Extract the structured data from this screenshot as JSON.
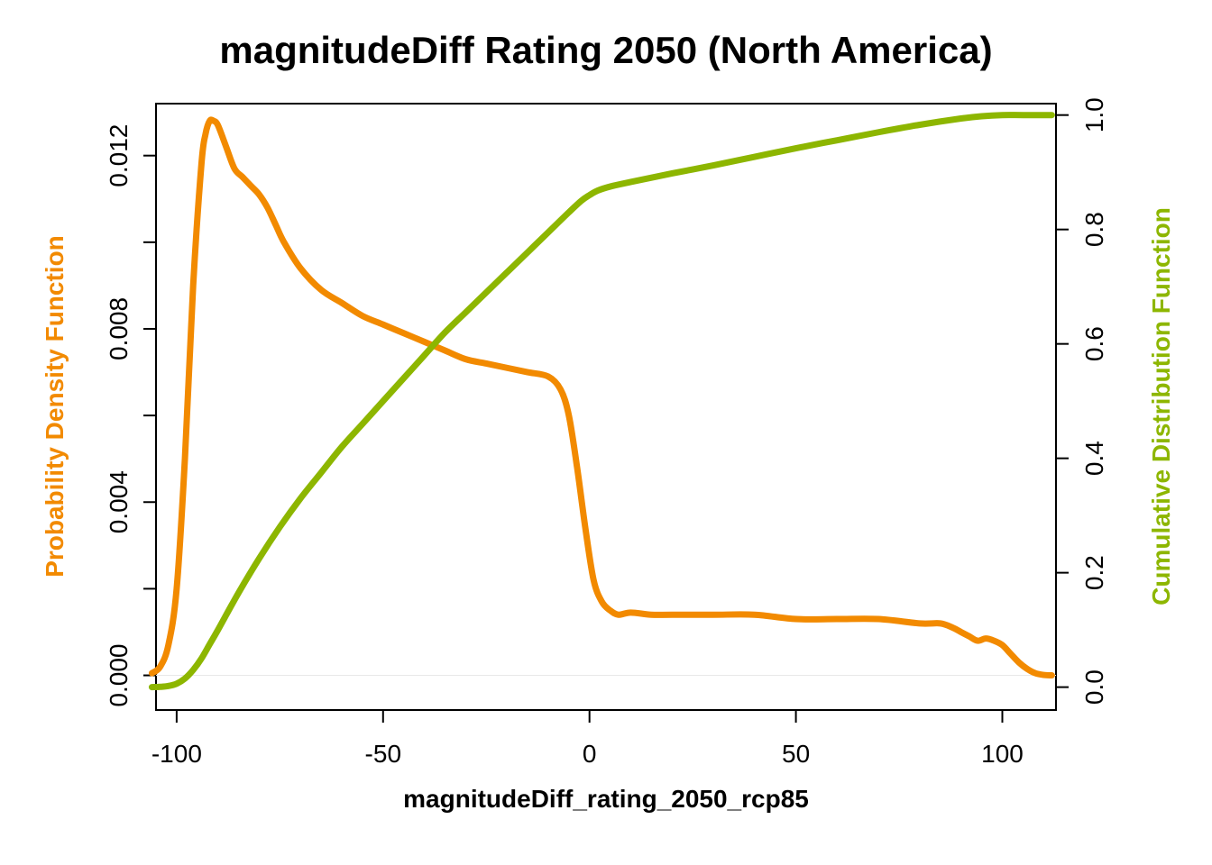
{
  "chart_data": {
    "type": "line",
    "title": "magnitudeDiff Rating 2050 (North America)",
    "xlabel": "magnitudeDiff_rating_2050_rcp85",
    "ylabel_left": "Probability Density Function",
    "ylabel_right": "Cumulative Distribution Function",
    "xlim": [
      -105,
      113
    ],
    "ylim_left": [
      -0.0008,
      0.0132
    ],
    "ylim_right": [
      -0.04,
      1.02
    ],
    "x_ticks": [
      -100,
      -50,
      0,
      50,
      100
    ],
    "x_tick_labels": [
      "-100",
      "-50",
      "0",
      "50",
      "100"
    ],
    "y_left_ticks": [
      0.0,
      0.002,
      0.004,
      0.006,
      0.008,
      0.01,
      0.012
    ],
    "y_left_tick_labels": [
      "0.000",
      "",
      "0.004",
      "",
      "0.008",
      "",
      "0.012"
    ],
    "y_right_ticks": [
      0.0,
      0.2,
      0.4,
      0.6,
      0.8,
      1.0
    ],
    "y_right_tick_labels": [
      "0.0",
      "0.2",
      "0.4",
      "0.6",
      "0.8",
      "1.0"
    ],
    "grid": false,
    "colors": {
      "pdf": "#F28A00",
      "cdf": "#8DB600",
      "baseline": "#e8e8e8"
    },
    "series": [
      {
        "name": "Probability Density Function",
        "axis": "left",
        "x": [
          -106,
          -104,
          -102,
          -100,
          -98,
          -96,
          -94,
          -93,
          -92,
          -91,
          -90,
          -88,
          -86,
          -84,
          -82,
          -80,
          -78,
          -76,
          -74,
          -70,
          -65,
          -60,
          -55,
          -50,
          -45,
          -40,
          -35,
          -30,
          -25,
          -20,
          -15,
          -10,
          -7,
          -5,
          -3,
          -1,
          1,
          3,
          5,
          7,
          10,
          15,
          20,
          30,
          40,
          50,
          60,
          70,
          80,
          85,
          88,
          90,
          92,
          94,
          96,
          98,
          100,
          102,
          104,
          106,
          108,
          110,
          112
        ],
        "y": [
          5e-05,
          0.0002,
          0.0007,
          0.002,
          0.005,
          0.009,
          0.0118,
          0.0125,
          0.0128,
          0.0128,
          0.0127,
          0.0122,
          0.0117,
          0.0115,
          0.0113,
          0.0111,
          0.0108,
          0.0104,
          0.01,
          0.0094,
          0.0089,
          0.0086,
          0.0083,
          0.0081,
          0.0079,
          0.0077,
          0.0075,
          0.0073,
          0.0072,
          0.0071,
          0.007,
          0.0069,
          0.0066,
          0.006,
          0.0048,
          0.0034,
          0.0022,
          0.0017,
          0.0015,
          0.0014,
          0.00145,
          0.0014,
          0.0014,
          0.0014,
          0.0014,
          0.0013,
          0.0013,
          0.0013,
          0.0012,
          0.0012,
          0.0011,
          0.001,
          0.0009,
          0.0008,
          0.00085,
          0.0008,
          0.0007,
          0.0005,
          0.0003,
          0.00015,
          5e-05,
          1e-05,
          0.0
        ]
      },
      {
        "name": "Cumulative Distribution Function",
        "axis": "right",
        "x": [
          -106,
          -104,
          -102,
          -100,
          -98,
          -96,
          -94,
          -92,
          -90,
          -85,
          -80,
          -75,
          -70,
          -65,
          -60,
          -55,
          -50,
          -45,
          -40,
          -35,
          -30,
          -25,
          -20,
          -15,
          -10,
          -5,
          -2,
          0,
          2,
          5,
          10,
          20,
          30,
          40,
          50,
          60,
          70,
          80,
          90,
          95,
          100,
          105,
          112
        ],
        "y": [
          0.0,
          0.0005,
          0.002,
          0.006,
          0.015,
          0.03,
          0.05,
          0.075,
          0.1,
          0.165,
          0.225,
          0.28,
          0.33,
          0.375,
          0.42,
          0.46,
          0.5,
          0.54,
          0.58,
          0.62,
          0.655,
          0.69,
          0.725,
          0.76,
          0.795,
          0.83,
          0.85,
          0.86,
          0.868,
          0.875,
          0.883,
          0.898,
          0.912,
          0.927,
          0.942,
          0.956,
          0.97,
          0.983,
          0.994,
          0.998,
          1.0,
          1.0,
          1.0
        ]
      }
    ]
  }
}
